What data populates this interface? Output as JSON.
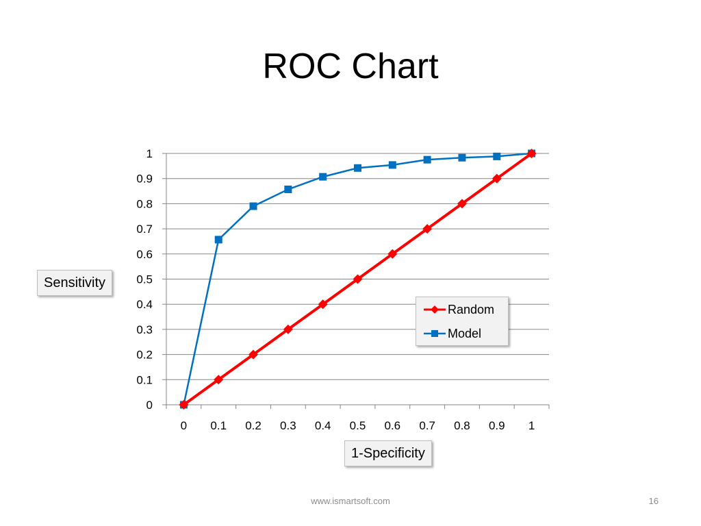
{
  "slide": {
    "title": "ROC Chart",
    "footer_url": "www.ismartsoft.com",
    "page_number": "16"
  },
  "chart_data": {
    "type": "line",
    "title": "",
    "xlabel": "1-Specificity",
    "ylabel": "Sensitivity",
    "x": [
      0,
      0.1,
      0.2,
      0.3,
      0.4,
      0.5,
      0.6,
      0.7,
      0.8,
      0.9,
      1
    ],
    "x_tick_labels": [
      "0",
      "0.1",
      "0.2",
      "0.3",
      "0.4",
      "0.5",
      "0.6",
      "0.7",
      "0.8",
      "0.9",
      "1"
    ],
    "y_tick_labels": [
      "0",
      "0.1",
      "0.2",
      "0.3",
      "0.4",
      "0.5",
      "0.6",
      "0.7",
      "0.8",
      "0.9",
      "1"
    ],
    "ylim": [
      0,
      1
    ],
    "grid": "horizontal",
    "legend_position": "right",
    "series": [
      {
        "name": "Random",
        "color": "#ff0000",
        "marker": "diamond",
        "values": [
          0,
          0.1,
          0.2,
          0.3,
          0.4,
          0.5,
          0.6,
          0.7,
          0.8,
          0.9,
          1
        ]
      },
      {
        "name": "Model",
        "color": "#0070c0",
        "marker": "square",
        "values": [
          0,
          0.657,
          0.79,
          0.857,
          0.907,
          0.942,
          0.954,
          0.975,
          0.983,
          0.988,
          1
        ]
      }
    ]
  }
}
